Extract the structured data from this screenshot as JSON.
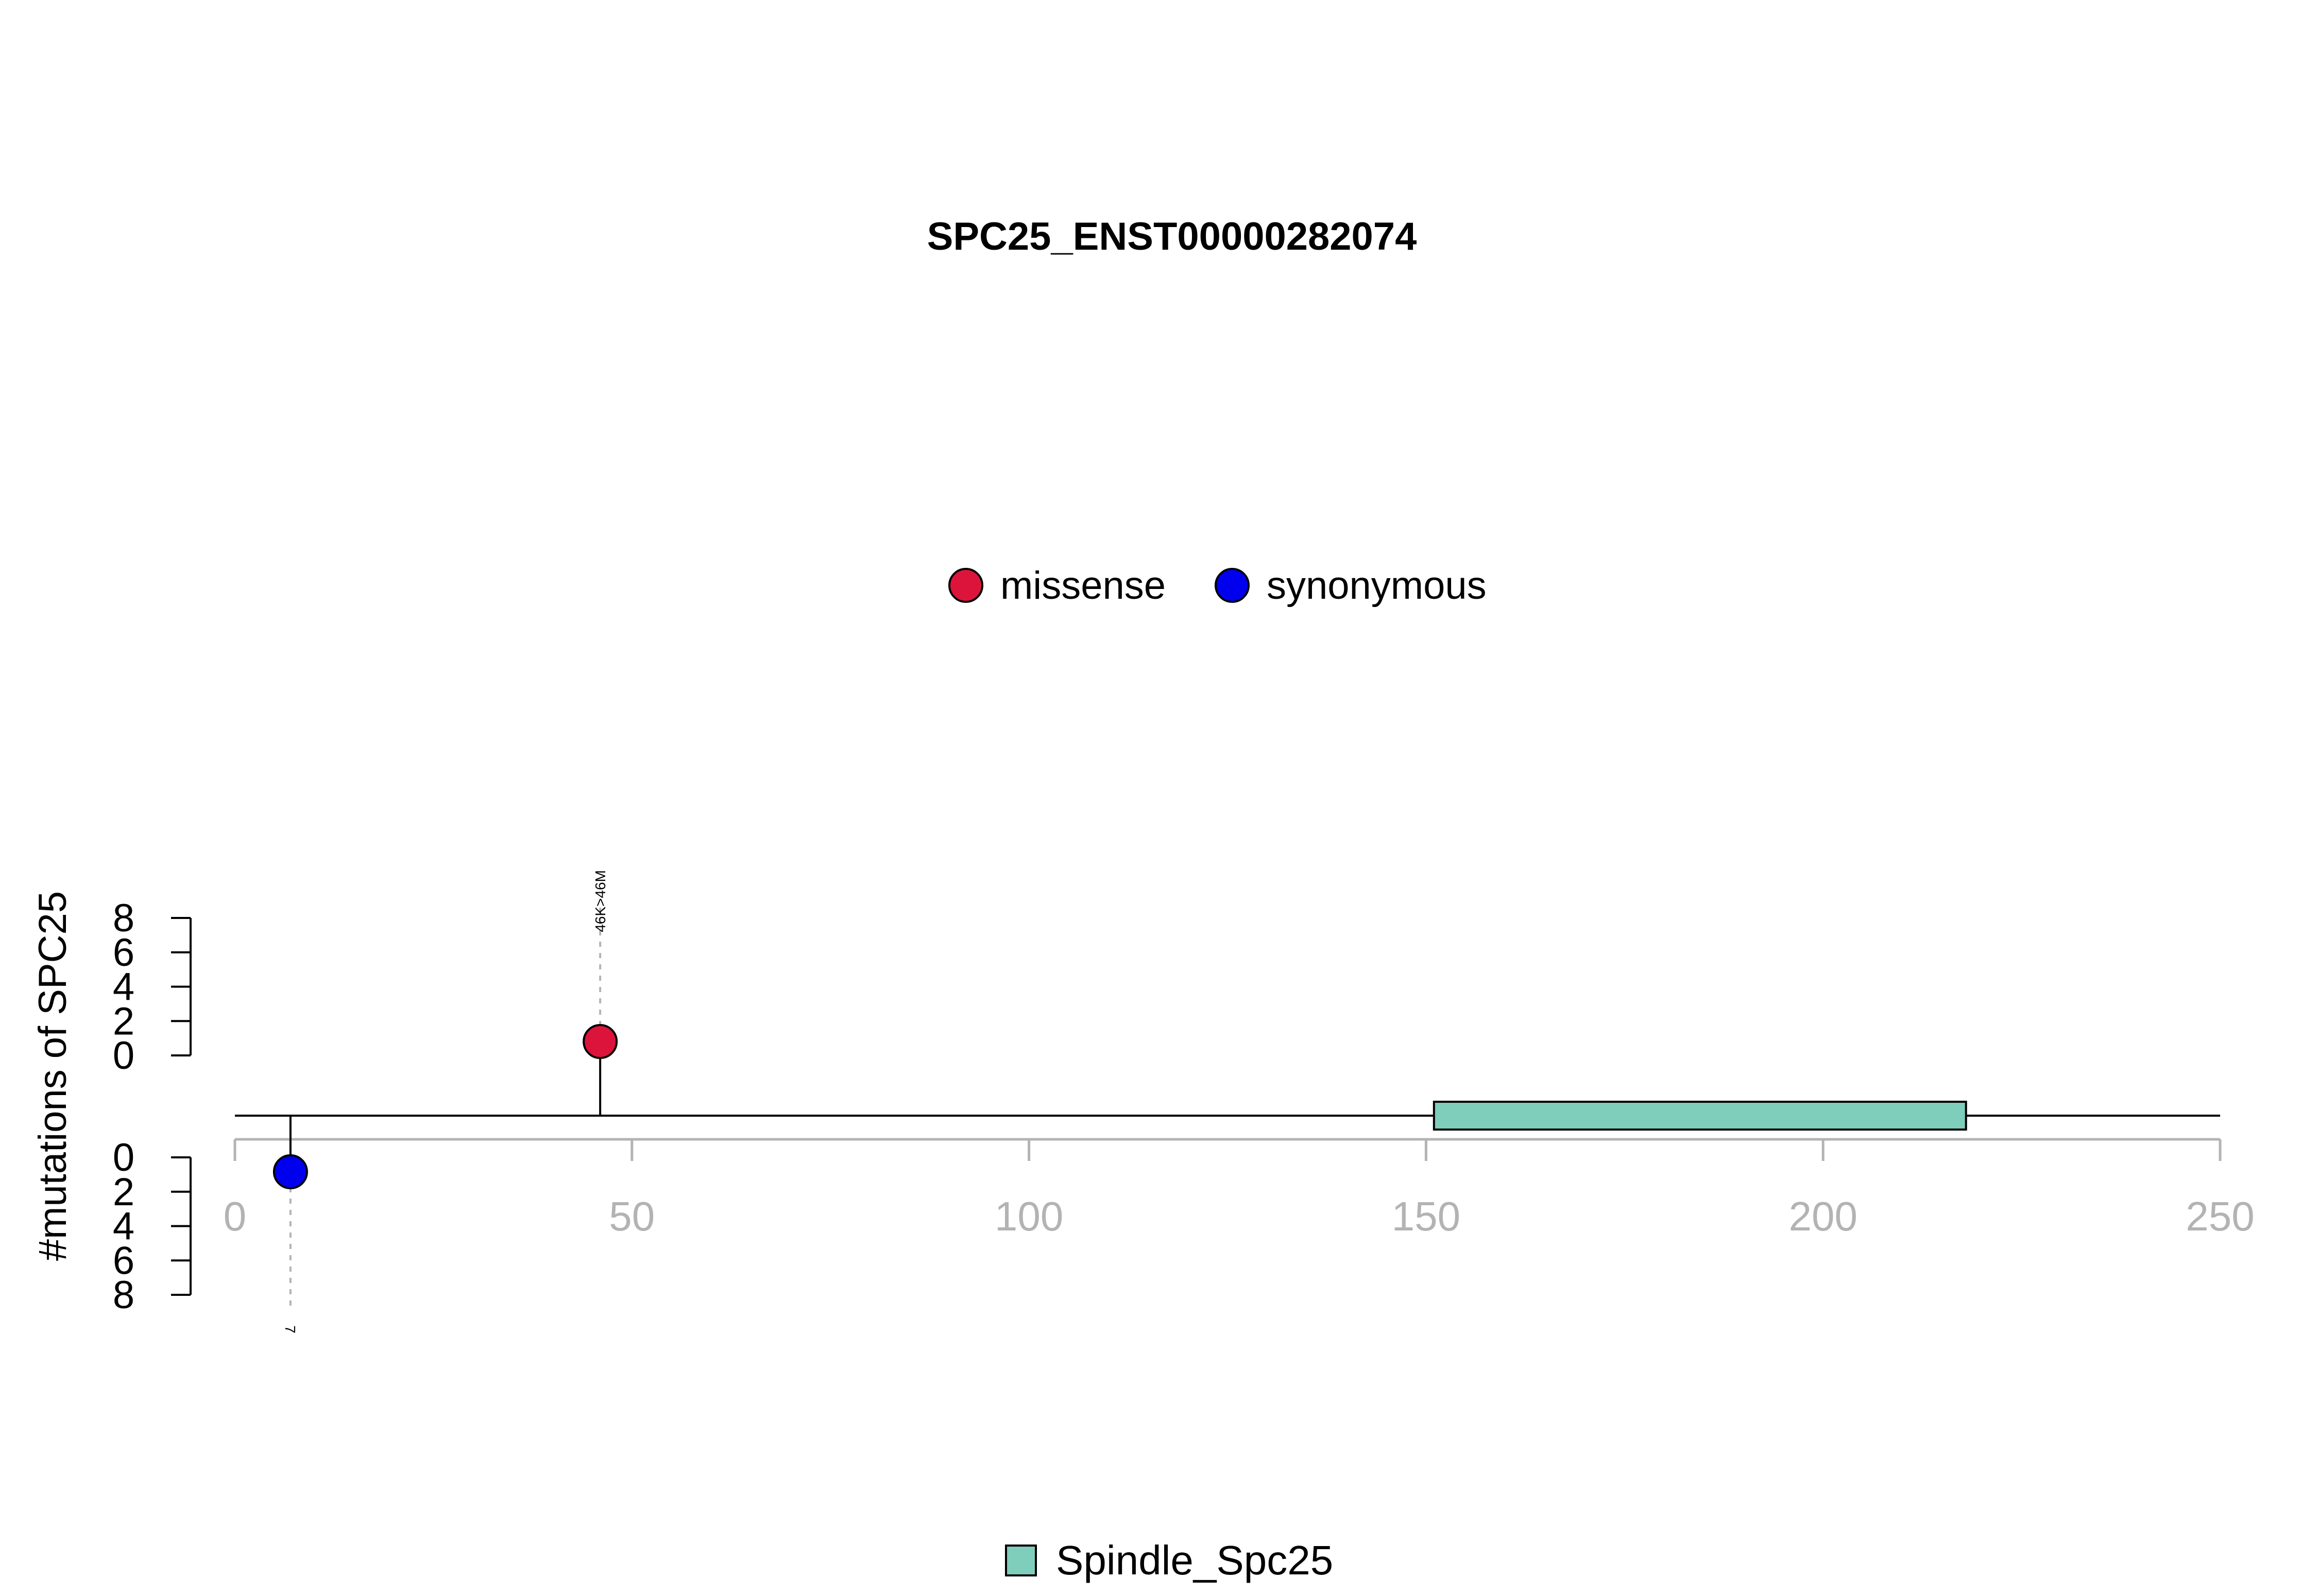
{
  "chart_data": {
    "type": "lollipop",
    "title": "SPC25_ENST00000282074",
    "ylabel": "#mutations of SPC25",
    "xlim": [
      0,
      250
    ],
    "x_ticks": [
      0,
      50,
      100,
      150,
      200,
      250
    ],
    "upper_y_ticks": [
      0,
      2,
      4,
      6,
      8
    ],
    "lower_y_ticks": [
      0,
      2,
      4,
      6,
      8
    ],
    "legend": [
      {
        "label": "missense",
        "color": "#DC143C"
      },
      {
        "label": "synonymous",
        "color": "#0000EE"
      }
    ],
    "mutations": [
      {
        "position": 46,
        "count": 1,
        "type": "missense",
        "label": "46K>46M",
        "track": "upper",
        "color": "#DC143C"
      },
      {
        "position": 7,
        "count": 1,
        "type": "synonymous",
        "label": "7",
        "track": "lower",
        "color": "#0000EE"
      }
    ],
    "domains": [
      {
        "name": "Spindle_Spc25",
        "start": 151,
        "end": 218,
        "color": "#7FCDBB"
      }
    ],
    "grid": false
  }
}
